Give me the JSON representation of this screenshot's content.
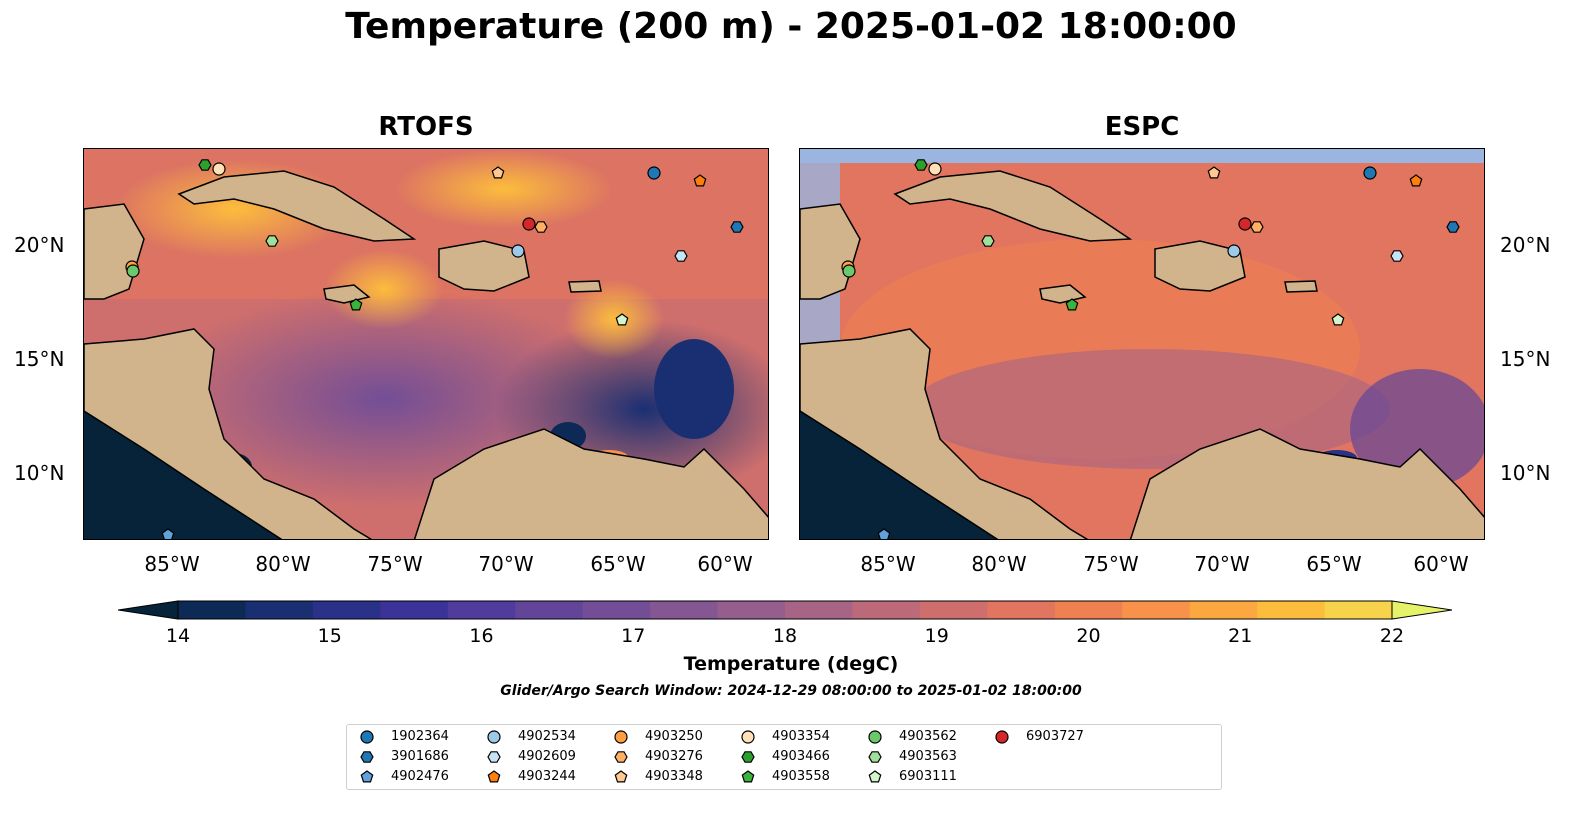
{
  "title": "Temperature (200 m) - 2025-01-02 18:00:00",
  "panels": [
    {
      "title": "RTOFS"
    },
    {
      "title": "ESPC"
    }
  ],
  "lat_labels": [
    "20°N",
    "15°N",
    "10°N"
  ],
  "lon_labels": [
    "85°W",
    "80°W",
    "75°W",
    "70°W",
    "65°W",
    "60°W"
  ],
  "colorbar": {
    "label": "Temperature (degC)",
    "ticks": [
      "14",
      "15",
      "16",
      "17",
      "18",
      "19",
      "20",
      "21",
      "22"
    ],
    "range": [
      14,
      22
    ],
    "step": 0.5,
    "extend": "both",
    "colors": [
      "#06233a",
      "#0c2a55",
      "#1a2f72",
      "#2a3188",
      "#3c3398",
      "#503c9c",
      "#624599",
      "#734e96",
      "#845692",
      "#955e8c",
      "#a86484",
      "#bc6a7a",
      "#cf6f6d",
      "#e1755f",
      "#ef8050",
      "#f8924a",
      "#fba840",
      "#fcbd3c",
      "#f6d34a",
      "#e6f36a"
    ]
  },
  "search_window": "Glider/Argo Search Window: 2024-12-29 08:00:00 to 2025-01-02 18:00:00",
  "legend": [
    {
      "id": "1902364",
      "marker": "circle",
      "color": "#1f77b4"
    },
    {
      "id": "3901686",
      "marker": "hexagon",
      "color": "#1f77b4"
    },
    {
      "id": "4902476",
      "marker": "pentagon",
      "color": "#5fa2dd"
    },
    {
      "id": "4902534",
      "marker": "circle",
      "color": "#9ecae9"
    },
    {
      "id": "4902609",
      "marker": "hexagon",
      "color": "#c6e4f5"
    },
    {
      "id": "4903244",
      "marker": "pentagon",
      "color": "#ff7f0e"
    },
    {
      "id": "4903250",
      "marker": "circle",
      "color": "#ff9f40"
    },
    {
      "id": "4903276",
      "marker": "hexagon",
      "color": "#ffb062"
    },
    {
      "id": "4903348",
      "marker": "pentagon",
      "color": "#ffc891"
    },
    {
      "id": "4903354",
      "marker": "circle",
      "color": "#ffe0b8"
    },
    {
      "id": "4903466",
      "marker": "hexagon",
      "color": "#2ca02c"
    },
    {
      "id": "4903558",
      "marker": "pentagon",
      "color": "#3cb43c"
    },
    {
      "id": "4903562",
      "marker": "circle",
      "color": "#6cc86c"
    },
    {
      "id": "4903563",
      "marker": "hexagon",
      "color": "#a0e09a"
    },
    {
      "id": "6903111",
      "marker": "pentagon",
      "color": "#d4f5cc"
    },
    {
      "id": "6903727",
      "marker": "circle",
      "color": "#d62728"
    }
  ],
  "colors": {
    "land": "#d2b48c",
    "shelf": "#9ab5e0",
    "deep": "#06233a",
    "border": "#000000"
  }
}
